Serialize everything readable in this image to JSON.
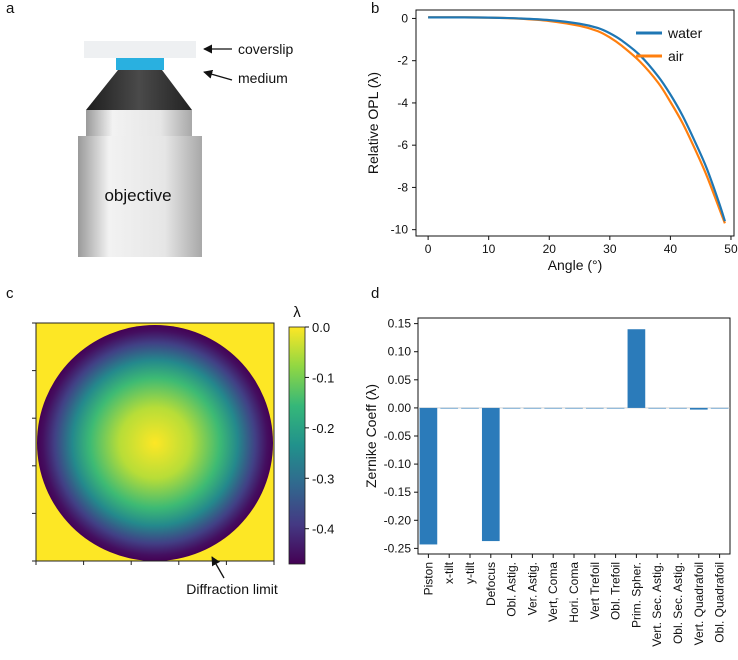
{
  "panels": {
    "a": "a",
    "b": "b",
    "c": "c",
    "d": "d"
  },
  "panel_a": {
    "coverslip_label": "coverslip",
    "medium_label": "medium",
    "objective_label": "objective",
    "colors": {
      "coverslip": "#eef0f2",
      "medium": "#29b0e0",
      "objective_top": "#3a3a3a",
      "objective_body": "#e2e2e2"
    }
  },
  "colors": {
    "water": "#1f77b4",
    "air": "#ff7f0e",
    "bar": "#2b7bba"
  },
  "chart_data": [
    {
      "id": "b",
      "type": "line",
      "title": "",
      "xlabel": "Angle (°)",
      "ylabel": "Relative OPL (λ)",
      "xlim": [
        -2,
        50.5
      ],
      "ylim": [
        -10.3,
        0.4
      ],
      "xticks": [
        0,
        10,
        20,
        30,
        40,
        50
      ],
      "yticks": [
        0,
        -2,
        -4,
        -6,
        -8,
        -10
      ],
      "legend_position": "top-right",
      "series": [
        {
          "name": "water",
          "x": [
            0,
            5,
            10,
            15,
            20,
            25,
            28,
            30,
            32,
            35,
            38,
            40,
            42,
            44,
            46,
            48,
            49
          ],
          "y": [
            0.05,
            0.05,
            0.04,
            0.0,
            -0.08,
            -0.25,
            -0.45,
            -0.7,
            -1.05,
            -1.75,
            -2.75,
            -3.6,
            -4.6,
            -5.8,
            -7.1,
            -8.7,
            -9.6
          ]
        },
        {
          "name": "air",
          "x": [
            0,
            5,
            10,
            15,
            20,
            25,
            28,
            30,
            32,
            35,
            38,
            40,
            42,
            44,
            46,
            48,
            49
          ],
          "y": [
            0.05,
            0.05,
            0.04,
            -0.01,
            -0.12,
            -0.35,
            -0.6,
            -0.9,
            -1.3,
            -2.05,
            -3.05,
            -3.95,
            -4.95,
            -6.15,
            -7.45,
            -8.95,
            -9.7
          ]
        }
      ]
    },
    {
      "id": "c",
      "type": "heatmap",
      "title": "",
      "colorbar_label": "λ",
      "colorbar_range": [
        -0.47,
        0.0
      ],
      "colorbar_ticks": [
        "0.0",
        "-0.1",
        "-0.2",
        "-0.3",
        "-0.4"
      ],
      "colorbar_tick_values": [
        0.0,
        -0.1,
        -0.2,
        -0.3,
        -0.4
      ],
      "colormap": [
        "#fde725",
        "#90d743",
        "#35b779",
        "#21918c",
        "#31688e",
        "#443983",
        "#440154"
      ],
      "radial_profile": {
        "r": [
          0.0,
          0.3,
          0.55,
          0.7,
          0.85,
          0.95,
          1.0
        ],
        "value": [
          0.0,
          -0.05,
          -0.15,
          -0.25,
          -0.38,
          -0.45,
          -0.47
        ]
      },
      "annotation": "Diffraction limit"
    },
    {
      "id": "d",
      "type": "bar",
      "title": "",
      "xlabel": "",
      "ylabel": "Zernike Coeff (λ)",
      "ylim": [
        -0.26,
        0.16
      ],
      "yticks": [
        "0.15",
        "0.10",
        "0.05",
        "0.00",
        "-0.05",
        "-0.10",
        "-0.15",
        "-0.20",
        "-0.25"
      ],
      "ytick_values": [
        0.15,
        0.1,
        0.05,
        0.0,
        -0.05,
        -0.1,
        -0.15,
        -0.2,
        -0.25
      ],
      "categories": [
        "Piston",
        "x-tilt",
        "y-tilt",
        "Defocus",
        "Obl. Astig.",
        "Ver. Astig.",
        "Vert, Coma",
        "Hori. Coma",
        "Vert Trefoil",
        "Obl. Trefoil",
        "Prim. Spher.",
        "Vert. Sec. Astig.",
        "Obl. Sec. Astig.",
        "Vert. Quadrafoil",
        "Obl. Quadrafoil"
      ],
      "values": [
        -0.243,
        0.0,
        0.0,
        -0.237,
        0.0,
        0.0,
        0.0,
        0.0,
        0.0,
        -0.001,
        0.14,
        0.0,
        0.0,
        -0.003,
        0.0
      ]
    }
  ]
}
